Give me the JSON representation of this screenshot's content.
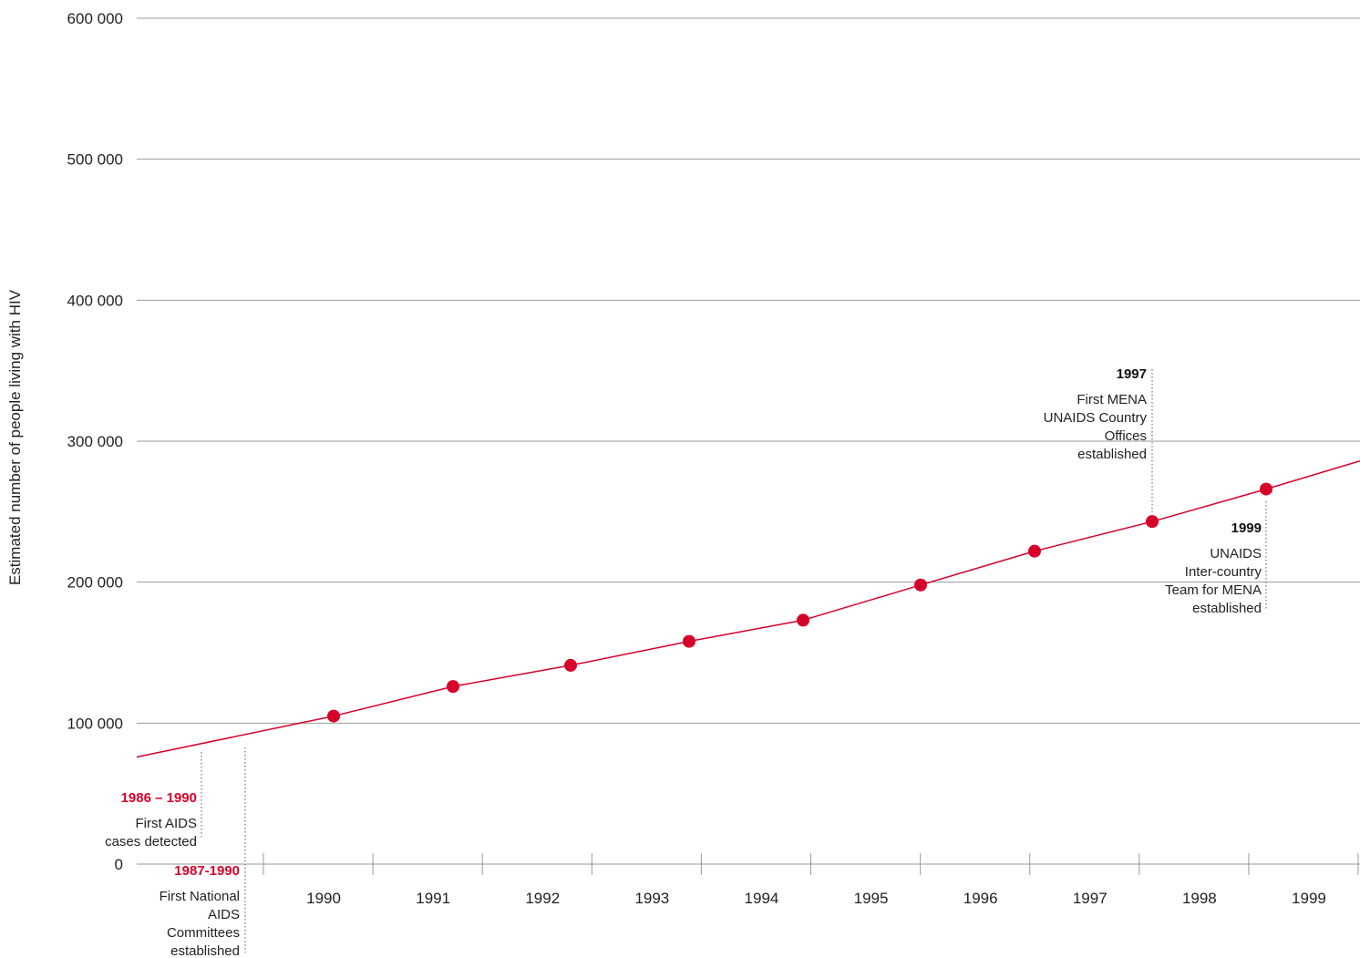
{
  "chart_data": {
    "type": "line",
    "title": "",
    "xlabel": "",
    "ylabel": "Estimated number of people living with HIV",
    "ylim": [
      0,
      600000
    ],
    "yticks": [
      "0",
      "100 000",
      "200 000",
      "300 000",
      "400 000",
      "500 000",
      "600 000"
    ],
    "ytick_values": [
      0,
      100000,
      200000,
      300000,
      400000,
      500000,
      600000
    ],
    "categories": [
      "1990",
      "1991",
      "1992",
      "1993",
      "1994",
      "1995",
      "1996",
      "1997",
      "1998",
      "1999"
    ],
    "grid": true,
    "series": [
      {
        "color": "#d6002a",
        "x": [
          1990,
          1991,
          1992,
          1993,
          1994,
          1995,
          1996,
          1997,
          1998,
          1999
        ],
        "values": [
          105000,
          126000,
          141000,
          158000,
          173000,
          198000,
          222000,
          243000,
          266000,
          null
        ],
        "line_start": 76000,
        "line_end": 286000
      }
    ],
    "annotations": [
      {
        "year": "1986 – 1990",
        "year_color": "#d6002a",
        "text": [
          "First AIDS",
          "cases detected"
        ]
      },
      {
        "year": "1987-1990",
        "year_color": "#d6002a",
        "text": [
          "First National",
          "AIDS",
          "Committees",
          "established"
        ]
      },
      {
        "year": "1997",
        "year_color": "#111111",
        "text": [
          "First MENA",
          "UNAIDS Country",
          "Offices",
          "established"
        ]
      },
      {
        "year": "1999",
        "year_color": "#111111",
        "text": [
          "UNAIDS",
          "Inter-country",
          "Team for MENA",
          "established"
        ]
      }
    ]
  }
}
